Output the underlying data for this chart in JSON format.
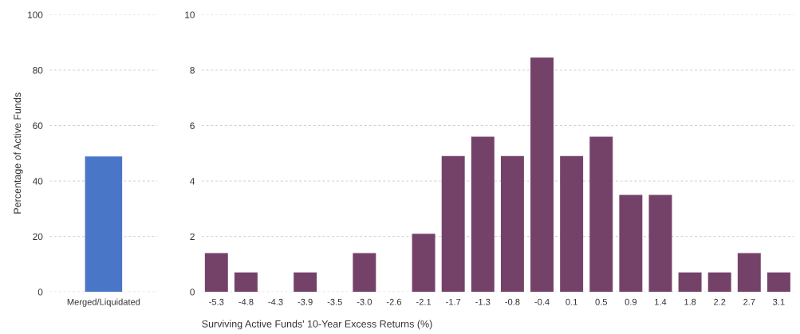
{
  "chart_data": [
    {
      "type": "bar",
      "categories": [
        "Merged/Liquidated"
      ],
      "values": [
        48.9
      ],
      "color": "#4a76c8",
      "ylabel": "Percentage of Active Funds",
      "ylim": [
        0,
        100
      ],
      "yticks": [
        0,
        20,
        40,
        60,
        80,
        100
      ],
      "grid": "y"
    },
    {
      "type": "bar",
      "categories": [
        "-5.3",
        "-4.8",
        "-4.3",
        "-3.9",
        "-3.5",
        "-3.0",
        "-2.6",
        "-2.1",
        "-1.7",
        "-1.3",
        "-0.8",
        "-0.4",
        "0.1",
        "0.5",
        "0.9",
        "1.4",
        "1.8",
        "2.2",
        "2.7",
        "3.1"
      ],
      "values": [
        1.4,
        0.7,
        0,
        0.7,
        0,
        1.4,
        0,
        2.1,
        4.9,
        5.6,
        4.9,
        8.45,
        4.9,
        5.6,
        3.5,
        3.5,
        0.7,
        0.7,
        1.4,
        0.7
      ],
      "color": "#744269",
      "xlabel": "Surviving Active Funds' 10-Year Excess Returns (%)",
      "ylim": [
        0,
        10
      ],
      "yticks": [
        0,
        2,
        4,
        6,
        8,
        10
      ],
      "grid": "y"
    }
  ]
}
